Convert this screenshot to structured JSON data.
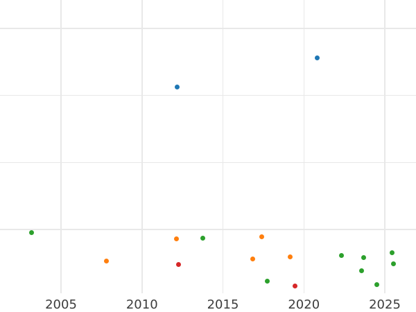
{
  "chart_data": {
    "type": "scatter",
    "title": "",
    "xlabel": "",
    "ylabel": "",
    "x_ticks": [
      2005,
      2010,
      2015,
      2020,
      2025
    ],
    "x_tick_labels": [
      "2005",
      "2010",
      "2015",
      "2020",
      "2025"
    ],
    "xlim": [
      2001.2,
      2026.9
    ],
    "ylim": [
      0,
      4.42
    ],
    "y_gridlines": [
      1,
      2,
      3,
      4
    ],
    "y_axis_unlabeled": true,
    "grid": true,
    "legend_position": "none",
    "marker_size_px": 7,
    "series": [
      {
        "name": "blue",
        "color": "#1f77b4",
        "points": [
          {
            "x": 2012.16,
            "y": 3.13
          },
          {
            "x": 2020.84,
            "y": 3.56
          }
        ]
      },
      {
        "name": "orange",
        "color": "#ff7f0e",
        "points": [
          {
            "x": 2007.8,
            "y": 0.53
          },
          {
            "x": 2012.12,
            "y": 0.86
          },
          {
            "x": 2016.85,
            "y": 0.56
          },
          {
            "x": 2017.39,
            "y": 0.89
          },
          {
            "x": 2019.17,
            "y": 0.59
          }
        ]
      },
      {
        "name": "green",
        "color": "#2ca02c",
        "points": [
          {
            "x": 2003.19,
            "y": 0.95
          },
          {
            "x": 2013.77,
            "y": 0.87
          },
          {
            "x": 2017.76,
            "y": 0.23
          },
          {
            "x": 2022.34,
            "y": 0.61
          },
          {
            "x": 2023.57,
            "y": 0.38
          },
          {
            "x": 2023.68,
            "y": 0.58
          },
          {
            "x": 2024.5,
            "y": 0.18
          },
          {
            "x": 2025.46,
            "y": 0.65
          },
          {
            "x": 2025.53,
            "y": 0.49
          }
        ]
      },
      {
        "name": "red",
        "color": "#d62728",
        "points": [
          {
            "x": 2012.25,
            "y": 0.48
          },
          {
            "x": 2019.47,
            "y": 0.16
          }
        ]
      }
    ],
    "colors": {
      "background": "#ffffff",
      "grid": "#e8e8e8",
      "tick_label": "#3c3c3c"
    }
  }
}
